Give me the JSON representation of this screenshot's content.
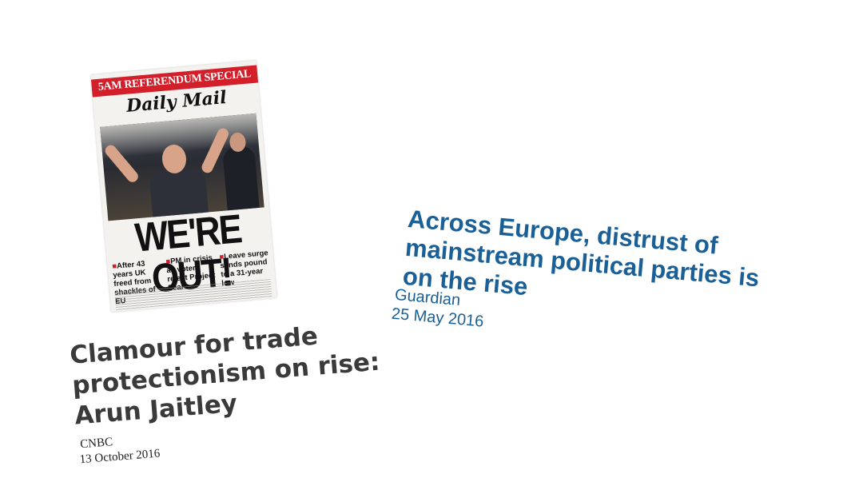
{
  "newspaper": {
    "banner": "5AM REFERENDUM SPECIAL",
    "masthead": "Daily Mail",
    "headline": "WE'RE OUT!",
    "subheads": [
      "After 43 years UK freed from shackles of EU",
      "PM in crisis as voters reject Project Fear",
      "Leave surge sends pound to a 31-year low"
    ]
  },
  "quotes": {
    "guardian": {
      "headline": "Across Europe, distrust of mainstream political parties is on the rise",
      "source": "Guardian",
      "date": "25 May 2016",
      "color": "#1a5f96"
    },
    "cnbc": {
      "headline": "Clamour for trade protectionism on rise: Arun Jaitley",
      "source": "CNBC",
      "date": "13 October 2016",
      "color": "#3a3a3a"
    }
  }
}
